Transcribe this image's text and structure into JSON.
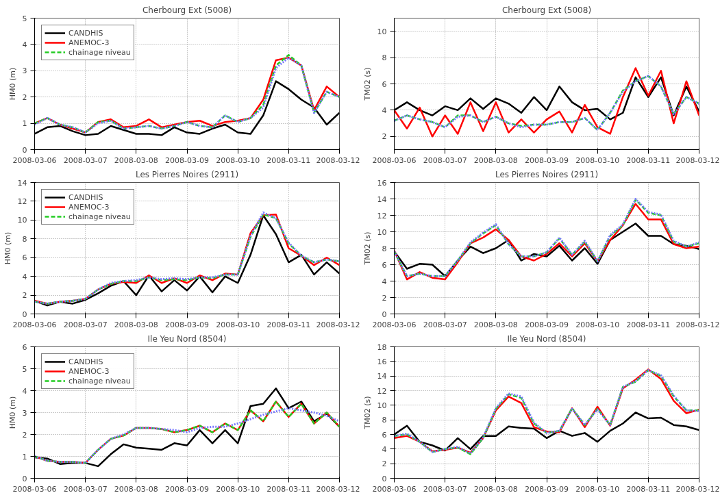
{
  "chart_data": [
    {
      "type": "line",
      "title": "Cherbourg Ext (5008)",
      "ylabel": "HM0 (m)",
      "grid": true,
      "legend": "top left",
      "x": [
        "2008-03-06T00:00",
        "2008-03-06T06:00",
        "2008-03-06T12:00",
        "2008-03-06T18:00",
        "2008-03-07T00:00",
        "2008-03-07T06:00",
        "2008-03-07T12:00",
        "2008-03-07T18:00",
        "2008-03-08T00:00",
        "2008-03-08T06:00",
        "2008-03-08T12:00",
        "2008-03-08T18:00",
        "2008-03-09T00:00",
        "2008-03-09T06:00",
        "2008-03-09T12:00",
        "2008-03-09T18:00",
        "2008-03-10T00:00",
        "2008-03-10T06:00",
        "2008-03-10T12:00",
        "2008-03-10T18:00",
        "2008-03-11T00:00",
        "2008-03-11T06:00",
        "2008-03-11T12:00",
        "2008-03-11T18:00",
        "2008-03-12T00:00"
      ],
      "xlim": [
        "2008-03-06",
        "2008-03-12"
      ],
      "xticks": [
        "2008-03-06",
        "2008-03-07",
        "2008-03-08",
        "2008-03-09",
        "2008-03-10",
        "2008-03-11",
        "2008-03-12"
      ],
      "ylim": [
        0,
        5
      ],
      "yticks": [
        0,
        1,
        2,
        3,
        4,
        5
      ],
      "series": [
        {
          "name": "CANDHIS",
          "color": "#000000",
          "line_style": "solid",
          "values": [
            0.6,
            0.85,
            0.9,
            0.7,
            0.55,
            0.6,
            0.9,
            0.75,
            0.6,
            0.6,
            0.55,
            0.85,
            0.65,
            0.6,
            0.8,
            0.95,
            0.65,
            0.6,
            1.3,
            2.6,
            2.3,
            1.9,
            1.6,
            0.95,
            1.4
          ]
        },
        {
          "name": "ANEMOC-3",
          "color": "#ff0000",
          "line_style": "solid",
          "values": [
            1.0,
            1.2,
            0.95,
            0.8,
            0.65,
            1.05,
            1.15,
            0.85,
            0.9,
            1.15,
            0.85,
            0.95,
            1.05,
            1.1,
            0.9,
            1.05,
            1.1,
            1.2,
            1.9,
            3.4,
            3.5,
            3.2,
            1.5,
            2.4,
            2.0
          ]
        },
        {
          "name": "chainage niveau",
          "color": "#22cc22",
          "line_style": "dashed",
          "values": [
            1.0,
            1.2,
            0.95,
            0.85,
            0.65,
            1.05,
            1.1,
            0.8,
            0.85,
            0.9,
            0.8,
            0.9,
            1.05,
            0.9,
            0.85,
            1.3,
            1.05,
            1.2,
            1.7,
            3.2,
            3.6,
            3.2,
            1.4,
            2.2,
            2.0
          ]
        },
        {
          "color": "#7777ff",
          "line_style": "dotted",
          "values": [
            0.95,
            1.2,
            0.95,
            0.85,
            0.65,
            1.0,
            1.1,
            0.8,
            0.85,
            0.9,
            0.8,
            0.9,
            1.05,
            0.9,
            0.85,
            1.3,
            1.05,
            1.2,
            1.6,
            3.1,
            3.5,
            3.2,
            1.4,
            2.2,
            2.0
          ]
        }
      ]
    },
    {
      "type": "line",
      "title": "Cherbourg Ext (5008)",
      "ylabel": "TM02 (s)",
      "grid": true,
      "x": [
        "2008-03-06T00:00",
        "2008-03-06T06:00",
        "2008-03-06T12:00",
        "2008-03-06T18:00",
        "2008-03-07T00:00",
        "2008-03-07T06:00",
        "2008-03-07T12:00",
        "2008-03-07T18:00",
        "2008-03-08T00:00",
        "2008-03-08T06:00",
        "2008-03-08T12:00",
        "2008-03-08T18:00",
        "2008-03-09T00:00",
        "2008-03-09T06:00",
        "2008-03-09T12:00",
        "2008-03-09T18:00",
        "2008-03-10T00:00",
        "2008-03-10T06:00",
        "2008-03-10T12:00",
        "2008-03-10T18:00",
        "2008-03-11T00:00",
        "2008-03-11T06:00",
        "2008-03-11T12:00",
        "2008-03-11T18:00",
        "2008-03-12T00:00"
      ],
      "xlim": [
        "2008-03-06",
        "2008-03-12"
      ],
      "xticks": [
        "2008-03-06",
        "2008-03-07",
        "2008-03-08",
        "2008-03-09",
        "2008-03-10",
        "2008-03-11",
        "2008-03-12"
      ],
      "ylim": [
        1,
        11
      ],
      "yticks": [
        2,
        4,
        6,
        8,
        10
      ],
      "series": [
        {
          "color": "#000000",
          "line_style": "solid",
          "values": [
            4.0,
            4.6,
            4.0,
            3.6,
            4.3,
            4.0,
            4.9,
            4.1,
            4.9,
            4.5,
            3.8,
            5.0,
            4.0,
            5.8,
            4.6,
            4.0,
            4.1,
            3.3,
            3.8,
            6.5,
            5.0,
            6.5,
            3.6,
            5.8,
            3.9
          ]
        },
        {
          "color": "#ff0000",
          "line_style": "solid",
          "values": [
            4.0,
            2.6,
            4.2,
            2.0,
            3.6,
            2.2,
            4.6,
            2.4,
            4.6,
            2.3,
            3.3,
            2.3,
            3.3,
            3.9,
            2.3,
            4.4,
            2.7,
            2.2,
            5.0,
            7.2,
            5.1,
            7.0,
            3.0,
            6.2,
            3.6
          ]
        },
        {
          "color": "#22cc22",
          "line_style": "dashed",
          "values": [
            3.2,
            3.6,
            3.3,
            3.1,
            2.7,
            3.6,
            3.6,
            3.1,
            3.5,
            3.0,
            2.8,
            2.9,
            2.9,
            3.1,
            3.1,
            3.4,
            2.5,
            3.8,
            5.5,
            6.2,
            6.6,
            5.8,
            3.7,
            5.0,
            4.5
          ]
        },
        {
          "color": "#7777ff",
          "line_style": "dotted",
          "values": [
            3.2,
            3.6,
            3.3,
            3.1,
            2.7,
            3.5,
            3.6,
            3.1,
            3.5,
            3.0,
            2.7,
            2.9,
            2.9,
            3.1,
            3.1,
            3.4,
            2.5,
            3.8,
            5.4,
            6.2,
            6.6,
            5.8,
            3.7,
            5.0,
            4.5
          ]
        }
      ]
    },
    {
      "type": "line",
      "title": "Les Pierres Noires (2911)",
      "ylabel": "HM0 (m)",
      "grid": true,
      "legend": "top left",
      "x": [
        "2008-03-06T00:00",
        "2008-03-06T06:00",
        "2008-03-06T12:00",
        "2008-03-06T18:00",
        "2008-03-07T00:00",
        "2008-03-07T06:00",
        "2008-03-07T12:00",
        "2008-03-07T18:00",
        "2008-03-08T00:00",
        "2008-03-08T06:00",
        "2008-03-08T12:00",
        "2008-03-08T18:00",
        "2008-03-09T00:00",
        "2008-03-09T06:00",
        "2008-03-09T12:00",
        "2008-03-09T18:00",
        "2008-03-10T00:00",
        "2008-03-10T06:00",
        "2008-03-10T12:00",
        "2008-03-10T18:00",
        "2008-03-11T00:00",
        "2008-03-11T06:00",
        "2008-03-11T12:00",
        "2008-03-11T18:00",
        "2008-03-12T00:00"
      ],
      "xlim": [
        "2008-03-06",
        "2008-03-12"
      ],
      "xticks": [
        "2008-03-06",
        "2008-03-07",
        "2008-03-08",
        "2008-03-09",
        "2008-03-10",
        "2008-03-11",
        "2008-03-12"
      ],
      "ylim": [
        0,
        14
      ],
      "yticks": [
        0,
        2,
        4,
        6,
        8,
        10,
        12,
        14
      ],
      "series": [
        {
          "name": "CANDHIS",
          "color": "#000000",
          "line_style": "solid",
          "values": [
            1.4,
            0.9,
            1.3,
            1.1,
            1.5,
            2.2,
            3.0,
            3.5,
            2.0,
            4.1,
            2.4,
            3.6,
            2.5,
            4.0,
            2.3,
            4.0,
            3.3,
            6.3,
            10.5,
            8.5,
            5.5,
            6.3,
            4.2,
            5.5,
            4.3
          ]
        },
        {
          "name": "ANEMOC-3",
          "color": "#ff0000",
          "line_style": "solid",
          "values": [
            1.4,
            1.1,
            1.3,
            1.4,
            1.6,
            2.6,
            3.2,
            3.4,
            3.3,
            4.1,
            3.3,
            3.8,
            3.3,
            4.1,
            3.6,
            4.3,
            4.2,
            8.6,
            10.5,
            10.6,
            7.0,
            6.2,
            5.2,
            6.0,
            5.2
          ]
        },
        {
          "name": "chainage niveau",
          "color": "#22cc22",
          "line_style": "dashed",
          "values": [
            1.3,
            1.1,
            1.3,
            1.4,
            1.6,
            2.6,
            3.2,
            3.5,
            3.5,
            3.9,
            3.6,
            3.7,
            3.6,
            3.9,
            3.8,
            4.2,
            4.2,
            8.2,
            10.6,
            10.2,
            7.5,
            6.2,
            5.5,
            5.8,
            5.6
          ]
        },
        {
          "color": "#7777ff",
          "line_style": "dotted",
          "values": [
            1.3,
            1.1,
            1.3,
            1.4,
            1.6,
            2.6,
            3.3,
            3.5,
            3.6,
            3.9,
            3.7,
            3.8,
            3.7,
            3.9,
            3.9,
            4.2,
            4.2,
            8.3,
            10.8,
            10.2,
            7.6,
            6.2,
            5.5,
            5.8,
            5.6
          ]
        }
      ]
    },
    {
      "type": "line",
      "title": "Les Pierres Noires (2911)",
      "ylabel": "TM02 (s)",
      "grid": true,
      "x": [
        "2008-03-06T00:00",
        "2008-03-06T06:00",
        "2008-03-06T12:00",
        "2008-03-06T18:00",
        "2008-03-07T00:00",
        "2008-03-07T06:00",
        "2008-03-07T12:00",
        "2008-03-07T18:00",
        "2008-03-08T00:00",
        "2008-03-08T06:00",
        "2008-03-08T12:00",
        "2008-03-08T18:00",
        "2008-03-09T00:00",
        "2008-03-09T06:00",
        "2008-03-09T12:00",
        "2008-03-09T18:00",
        "2008-03-10T00:00",
        "2008-03-10T06:00",
        "2008-03-10T12:00",
        "2008-03-10T18:00",
        "2008-03-11T00:00",
        "2008-03-11T06:00",
        "2008-03-11T12:00",
        "2008-03-11T18:00",
        "2008-03-12T00:00"
      ],
      "xlim": [
        "2008-03-06",
        "2008-03-12"
      ],
      "xticks": [
        "2008-03-06",
        "2008-03-07",
        "2008-03-08",
        "2008-03-09",
        "2008-03-10",
        "2008-03-11",
        "2008-03-12"
      ],
      "ylim": [
        0,
        16
      ],
      "yticks": [
        0,
        2,
        4,
        6,
        8,
        10,
        12,
        14,
        16
      ],
      "series": [
        {
          "color": "#000000",
          "line_style": "solid",
          "values": [
            7.6,
            5.5,
            6.1,
            6.0,
            4.6,
            6.5,
            8.2,
            7.4,
            8.0,
            9.0,
            6.5,
            7.3,
            7.0,
            8.3,
            6.5,
            8.0,
            6.1,
            9.0,
            10.0,
            11.0,
            9.5,
            9.5,
            8.5,
            8.3,
            7.9
          ]
        },
        {
          "color": "#ff0000",
          "line_style": "solid",
          "values": [
            7.7,
            4.2,
            5.1,
            4.4,
            4.2,
            6.3,
            8.6,
            9.3,
            10.3,
            9.0,
            7.0,
            6.5,
            7.3,
            8.6,
            7.0,
            8.6,
            6.4,
            9.0,
            10.8,
            13.4,
            11.5,
            11.5,
            8.5,
            8.0,
            8.2
          ]
        },
        {
          "color": "#22cc22",
          "line_style": "dashed",
          "values": [
            7.6,
            4.6,
            4.9,
            4.6,
            4.6,
            6.5,
            8.6,
            9.8,
            10.8,
            8.5,
            7.0,
            7.0,
            7.5,
            9.2,
            7.2,
            8.8,
            6.4,
            9.5,
            10.8,
            13.9,
            12.3,
            12.0,
            8.8,
            8.2,
            8.6
          ]
        },
        {
          "color": "#7777ff",
          "line_style": "dotted",
          "values": [
            7.6,
            4.6,
            4.9,
            4.6,
            4.6,
            6.5,
            8.7,
            9.9,
            10.9,
            8.5,
            7.0,
            7.0,
            7.5,
            9.3,
            7.2,
            8.9,
            6.4,
            9.6,
            10.9,
            14.0,
            12.4,
            12.1,
            8.9,
            8.2,
            8.7
          ]
        }
      ]
    },
    {
      "type": "line",
      "title": "Ile Yeu Nord (8504)",
      "ylabel": "HM0 (m)",
      "grid": true,
      "legend": "top left",
      "x": [
        "2008-03-06T00:00",
        "2008-03-06T06:00",
        "2008-03-06T12:00",
        "2008-03-06T18:00",
        "2008-03-07T00:00",
        "2008-03-07T06:00",
        "2008-03-07T12:00",
        "2008-03-07T18:00",
        "2008-03-08T00:00",
        "2008-03-08T06:00",
        "2008-03-08T12:00",
        "2008-03-08T18:00",
        "2008-03-09T00:00",
        "2008-03-09T06:00",
        "2008-03-09T12:00",
        "2008-03-09T18:00",
        "2008-03-10T00:00",
        "2008-03-10T06:00",
        "2008-03-10T12:00",
        "2008-03-10T18:00",
        "2008-03-11T00:00",
        "2008-03-11T06:00",
        "2008-03-11T12:00",
        "2008-03-11T18:00",
        "2008-03-12T00:00"
      ],
      "xlim": [
        "2008-03-06",
        "2008-03-12"
      ],
      "xticks": [
        "2008-03-06",
        "2008-03-07",
        "2008-03-08",
        "2008-03-09",
        "2008-03-10",
        "2008-03-11",
        "2008-03-12"
      ],
      "ylim": [
        0,
        6
      ],
      "yticks": [
        0,
        1,
        2,
        3,
        4,
        5,
        6
      ],
      "series": [
        {
          "name": "CANDHIS",
          "color": "#000000",
          "line_style": "solid",
          "values": [
            0.95,
            0.9,
            0.65,
            0.7,
            0.7,
            0.55,
            1.1,
            1.55,
            1.4,
            1.35,
            1.3,
            1.6,
            1.5,
            2.2,
            1.6,
            2.2,
            1.6,
            3.3,
            3.4,
            4.1,
            3.2,
            3.5,
            2.6,
            2.95,
            2.35
          ]
        },
        {
          "name": "ANEMOC-3",
          "color": "#ff0000",
          "line_style": "solid",
          "values": [
            1.0,
            0.8,
            0.75,
            0.75,
            0.7,
            1.3,
            1.8,
            1.95,
            2.3,
            2.3,
            2.25,
            2.1,
            2.2,
            2.4,
            2.1,
            2.5,
            2.2,
            3.1,
            2.6,
            3.5,
            2.8,
            3.4,
            2.5,
            3.0,
            2.35
          ]
        },
        {
          "name": "chainage niveau",
          "color": "#22cc22",
          "line_style": "dashed",
          "values": [
            1.0,
            0.8,
            0.75,
            0.75,
            0.7,
            1.3,
            1.8,
            1.95,
            2.3,
            2.3,
            2.25,
            2.1,
            2.2,
            2.4,
            2.1,
            2.5,
            2.2,
            3.1,
            2.6,
            3.5,
            2.8,
            3.4,
            2.5,
            3.0,
            2.35
          ]
        },
        {
          "color": "#7777ff",
          "line_style": "dotted",
          "values": [
            1.0,
            0.8,
            0.75,
            0.75,
            0.7,
            1.3,
            1.8,
            2.0,
            2.3,
            2.3,
            2.25,
            2.2,
            2.1,
            2.3,
            2.35,
            2.35,
            2.5,
            2.7,
            2.9,
            3.05,
            3.2,
            3.1,
            3.0,
            2.85,
            2.6
          ]
        }
      ]
    },
    {
      "type": "line",
      "title": "Ile Yeu Nord (8504)",
      "ylabel": "TM02 (s)",
      "grid": true,
      "x": [
        "2008-03-06T00:00",
        "2008-03-06T06:00",
        "2008-03-06T12:00",
        "2008-03-06T18:00",
        "2008-03-07T00:00",
        "2008-03-07T06:00",
        "2008-03-07T12:00",
        "2008-03-07T18:00",
        "2008-03-08T00:00",
        "2008-03-08T06:00",
        "2008-03-08T12:00",
        "2008-03-08T18:00",
        "2008-03-09T00:00",
        "2008-03-09T06:00",
        "2008-03-09T12:00",
        "2008-03-09T18:00",
        "2008-03-10T00:00",
        "2008-03-10T06:00",
        "2008-03-10T12:00",
        "2008-03-10T18:00",
        "2008-03-11T00:00",
        "2008-03-11T06:00",
        "2008-03-11T12:00",
        "2008-03-11T18:00",
        "2008-03-12T00:00"
      ],
      "xlim": [
        "2008-03-06",
        "2008-03-12"
      ],
      "xticks": [
        "2008-03-06",
        "2008-03-07",
        "2008-03-08",
        "2008-03-09",
        "2008-03-10",
        "2008-03-11",
        "2008-03-12"
      ],
      "ylim": [
        0,
        18
      ],
      "yticks": [
        0,
        2,
        4,
        6,
        8,
        10,
        12,
        14,
        16,
        18
      ],
      "series": [
        {
          "color": "#000000",
          "line_style": "solid",
          "values": [
            6.0,
            7.2,
            5.0,
            4.5,
            3.8,
            5.5,
            4.0,
            5.8,
            5.8,
            7.1,
            6.9,
            6.8,
            5.5,
            6.5,
            5.8,
            6.2,
            5.0,
            6.5,
            7.5,
            9.0,
            8.2,
            8.3,
            7.3,
            7.1,
            6.6
          ]
        },
        {
          "color": "#ff0000",
          "line_style": "solid",
          "values": [
            5.5,
            5.8,
            5.0,
            3.7,
            3.9,
            4.2,
            3.5,
            5.5,
            9.3,
            11.2,
            10.3,
            7.0,
            6.4,
            6.3,
            9.6,
            7.0,
            9.8,
            7.2,
            12.3,
            13.5,
            14.9,
            13.6,
            10.6,
            8.9,
            9.4
          ]
        },
        {
          "color": "#22cc22",
          "line_style": "dashed",
          "values": [
            5.8,
            6.0,
            5.0,
            3.6,
            4.0,
            4.2,
            3.3,
            5.5,
            9.5,
            11.5,
            11.0,
            7.5,
            6.2,
            6.5,
            9.6,
            7.3,
            9.5,
            7.3,
            12.5,
            13.2,
            14.8,
            14.0,
            11.2,
            9.3,
            9.3
          ]
        },
        {
          "color": "#7777ff",
          "line_style": "dotted",
          "values": [
            5.8,
            6.1,
            5.0,
            3.6,
            4.0,
            4.3,
            3.4,
            5.6,
            9.6,
            11.6,
            11.2,
            7.6,
            6.2,
            6.5,
            9.5,
            7.3,
            9.4,
            7.3,
            12.5,
            13.3,
            14.8,
            14.1,
            11.3,
            9.3,
            9.2
          ]
        }
      ]
    }
  ]
}
